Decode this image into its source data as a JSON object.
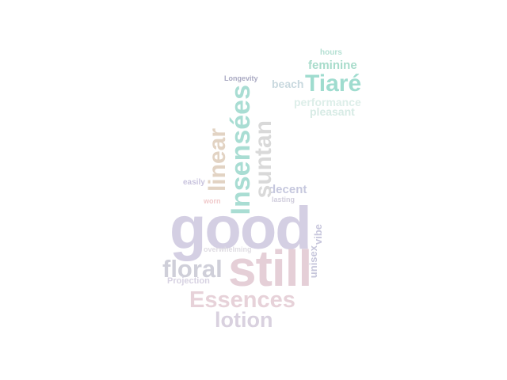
{
  "words": {
    "good": {
      "text": "good",
      "color": "#d4cfe3"
    },
    "still": {
      "text": "still",
      "color": "#e5cfd7"
    },
    "essences": {
      "text": "Essences",
      "color": "#e7d2d9"
    },
    "lotion": {
      "text": "lotion",
      "color": "#d9d1df"
    },
    "floral": {
      "text": "floral",
      "color": "#cfcfd9"
    },
    "projection": {
      "text": "Projection",
      "color": "#d7d2e2"
    },
    "overwhelming": {
      "text": "overwhelming",
      "color": "#e0dde3"
    },
    "worn": {
      "text": "worn",
      "color": "#f0c9ca"
    },
    "easily": {
      "text": "easily",
      "color": "#c9c4de"
    },
    "linear": {
      "text": "linear",
      "color": "#e2d3c3"
    },
    "insensees": {
      "text": "Insensées",
      "color": "#a9ddd3"
    },
    "suntan": {
      "text": "suntan",
      "color": "#d9d9d9"
    },
    "decent": {
      "text": "decent",
      "color": "#c6c8de"
    },
    "lasting": {
      "text": "lasting",
      "color": "#d1cedd"
    },
    "vibe": {
      "text": "vibe",
      "color": "#c8c7dd"
    },
    "unisex": {
      "text": "unisex",
      "color": "#c6c6db"
    },
    "longevity": {
      "text": "Longevity",
      "color": "#a9a9c2"
    },
    "beach": {
      "text": "beach",
      "color": "#c9d9df"
    },
    "tiare": {
      "text": "Tiaré",
      "color": "#9fdccf"
    },
    "hours": {
      "text": "hours",
      "color": "#b5e0d3"
    },
    "feminine": {
      "text": "feminine",
      "color": "#a8dccb"
    },
    "performance": {
      "text": "performance",
      "color": "#ddeee9"
    },
    "pleasant": {
      "text": "pleasant",
      "color": "#d7ebe5"
    }
  }
}
